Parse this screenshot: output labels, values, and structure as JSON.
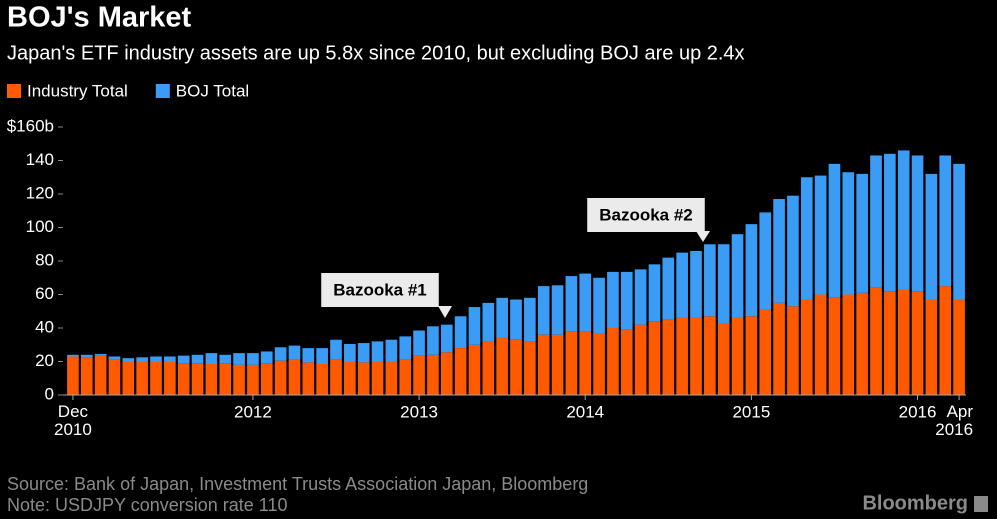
{
  "chart_data": {
    "type": "stacked-bar",
    "title": "BOJ's Market",
    "subtitle": "Japan's ETF industry assets are up 5.8x since 2010, but excluding BOJ are up 2.4x",
    "categories": [
      "Dec 2010",
      null,
      null,
      null,
      null,
      null,
      null,
      null,
      null,
      null,
      null,
      null,
      null,
      "2012",
      null,
      null,
      null,
      null,
      null,
      null,
      null,
      null,
      null,
      null,
      null,
      "2013",
      null,
      null,
      null,
      null,
      null,
      null,
      null,
      null,
      null,
      null,
      null,
      "2014",
      null,
      null,
      null,
      null,
      null,
      null,
      null,
      null,
      null,
      null,
      null,
      "2015",
      null,
      null,
      null,
      null,
      null,
      null,
      null,
      null,
      null,
      null,
      null,
      "2016",
      null,
      null,
      "Apr 2016"
    ],
    "series": [
      {
        "name": "Industry Total",
        "color": "#ff5a00",
        "values": [
          23,
          22.5,
          23.5,
          21,
          20,
          20,
          20,
          20,
          19,
          19,
          18.5,
          19,
          18,
          18,
          19,
          20.5,
          21,
          19.5,
          18.5,
          21,
          20,
          19.5,
          20,
          20,
          21,
          23.5,
          24,
          25.5,
          28,
          30,
          32,
          34,
          33,
          32,
          36,
          36,
          38,
          38,
          37,
          40,
          39,
          42,
          44,
          45,
          46,
          46,
          47,
          43,
          46,
          47,
          51,
          55,
          53,
          57,
          60,
          58,
          60,
          61,
          64,
          62,
          63,
          62,
          57,
          65,
          57
        ]
      },
      {
        "name": "BOJ Total",
        "color": "#3b9cf5",
        "values": [
          1,
          1.5,
          1,
          2,
          2,
          2.5,
          3,
          3,
          4.5,
          5,
          6.5,
          5,
          7,
          7,
          7,
          8,
          8.5,
          8.5,
          9.5,
          12,
          10.5,
          11.5,
          12,
          13,
          14,
          15,
          17,
          16.5,
          19,
          22.5,
          23,
          24,
          24,
          26,
          29,
          29.5,
          33,
          34.5,
          33,
          33.5,
          34.5,
          33,
          34,
          37,
          39,
          40,
          43,
          47,
          50,
          55,
          58,
          62,
          66,
          73,
          71,
          80,
          73,
          71,
          79,
          82,
          83,
          81,
          75,
          78,
          81
        ]
      }
    ],
    "ylim": [
      0,
      160
    ],
    "yticks": [
      0,
      20,
      40,
      60,
      80,
      100,
      120,
      {
        "value": 140,
        "label": "140"
      },
      {
        "value": 160,
        "label": "$160b"
      }
    ],
    "legend": "top-left",
    "annotations": [
      "Bazooka #1",
      "Bazooka #2"
    ],
    "source": "Source: Bank of Japan, Investment Trusts Association Japan, Bloomberg",
    "note": "Note: USDJPY conversion rate 110",
    "brand": "Bloomberg"
  }
}
